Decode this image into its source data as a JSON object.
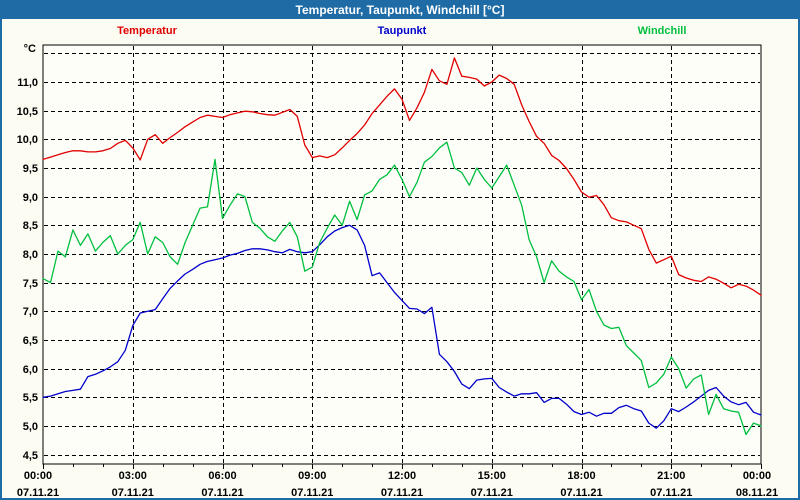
{
  "window": {
    "title": "Temperatur, Taupunkt, Windchill [°C]"
  },
  "colors": {
    "titlebar_bg": "#1e6ba6",
    "titlebar_text": "#ffffff",
    "frame_border": "#1e6ba6",
    "page_background": "#fcfcf3",
    "plot_background": "#fefef9",
    "grid": "#000000",
    "temperatur": "#e00000",
    "taupunkt": "#0000cc",
    "windchill": "#00bf3f"
  },
  "chart_data": {
    "type": "line",
    "title": "Temperatur, Taupunkt, Windchill [°C]",
    "grid": true,
    "legend_position": "top",
    "y_axis": {
      "unit_label": "°C",
      "min": 4.34,
      "max": 11.64,
      "gridline_values": [
        4.5,
        5.0,
        5.5,
        6.0,
        6.5,
        7.0,
        7.5,
        8.0,
        8.5,
        9.0,
        9.5,
        10.0,
        10.5,
        11.0,
        11.5
      ],
      "labels": [
        "4,5",
        "5,0",
        "5,5",
        "6,0",
        "6,5",
        "7,0",
        "7,5",
        "8,0",
        "8,5",
        "9,0",
        "9,5",
        "10,0",
        "10,5",
        "11,0"
      ],
      "decimal_separator": ","
    },
    "x_axis": {
      "hours_total": 24,
      "major_tick_hours": 3,
      "minor_tick_hours": 1,
      "ticks": [
        {
          "time": "00:00",
          "date": "07.11.21"
        },
        {
          "time": "03:00",
          "date": "07.11.21"
        },
        {
          "time": "06:00",
          "date": "07.11.21"
        },
        {
          "time": "09:00",
          "date": "07.11.21"
        },
        {
          "time": "12:00",
          "date": "07.11.21"
        },
        {
          "time": "15:00",
          "date": "07.11.21"
        },
        {
          "time": "18:00",
          "date": "07.11.21"
        },
        {
          "time": "21:00",
          "date": "07.11.21"
        },
        {
          "time": "00:00",
          "date": "08.11.21"
        }
      ]
    },
    "x_start_hour": 0,
    "x_step_hours": 0.25,
    "series": [
      {
        "name": "Temperatur",
        "color": "#e00000",
        "values": [
          9.65,
          9.69,
          9.73,
          9.77,
          9.8,
          9.8,
          9.78,
          9.78,
          9.8,
          9.84,
          9.93,
          9.98,
          9.85,
          9.64,
          10.0,
          10.08,
          9.93,
          10.03,
          10.12,
          10.22,
          10.3,
          10.38,
          10.42,
          10.4,
          10.38,
          10.43,
          10.46,
          10.49,
          10.48,
          10.45,
          10.43,
          10.42,
          10.47,
          10.52,
          10.4,
          9.9,
          9.68,
          9.71,
          9.68,
          9.73,
          9.85,
          9.98,
          10.1,
          10.25,
          10.45,
          10.6,
          10.75,
          10.88,
          10.7,
          10.33,
          10.55,
          10.82,
          11.22,
          11.02,
          10.96,
          11.42,
          11.1,
          11.08,
          11.05,
          10.93,
          11.0,
          11.12,
          11.06,
          10.96,
          10.6,
          10.31,
          10.05,
          9.93,
          9.72,
          9.63,
          9.49,
          9.3,
          9.08,
          8.99,
          9.02,
          8.86,
          8.63,
          8.58,
          8.56,
          8.5,
          8.44,
          8.08,
          7.84,
          7.9,
          7.96,
          7.64,
          7.58,
          7.54,
          7.52,
          7.6,
          7.56,
          7.49,
          7.41,
          7.47,
          7.44,
          7.37,
          7.28
        ]
      },
      {
        "name": "Taupunkt",
        "color": "#0000cc",
        "values": [
          5.5,
          5.52,
          5.56,
          5.6,
          5.62,
          5.64,
          5.86,
          5.9,
          5.96,
          6.03,
          6.12,
          6.32,
          6.75,
          6.97,
          7.0,
          7.03,
          7.22,
          7.4,
          7.53,
          7.65,
          7.73,
          7.82,
          7.87,
          7.9,
          7.93,
          7.98,
          8.01,
          8.06,
          8.09,
          8.09,
          8.07,
          8.04,
          8.02,
          8.08,
          8.04,
          8.02,
          8.04,
          8.16,
          8.3,
          8.4,
          8.46,
          8.5,
          8.42,
          8.15,
          7.62,
          7.67,
          7.5,
          7.33,
          7.19,
          7.05,
          7.04,
          6.96,
          7.07,
          6.25,
          6.12,
          5.95,
          5.73,
          5.65,
          5.8,
          5.82,
          5.83,
          5.67,
          5.59,
          5.52,
          5.56,
          5.56,
          5.58,
          5.41,
          5.48,
          5.48,
          5.38,
          5.25,
          5.2,
          5.24,
          5.17,
          5.22,
          5.22,
          5.32,
          5.36,
          5.3,
          5.26,
          5.05,
          4.96,
          5.09,
          5.3,
          5.25,
          5.33,
          5.42,
          5.52,
          5.62,
          5.67,
          5.52,
          5.42,
          5.37,
          5.41,
          5.24,
          5.19
        ]
      },
      {
        "name": "Windchill",
        "color": "#00bf3f",
        "values": [
          7.57,
          7.5,
          8.05,
          7.95,
          8.42,
          8.15,
          8.35,
          8.05,
          8.2,
          8.32,
          8.0,
          8.15,
          8.25,
          8.55,
          8.0,
          8.3,
          8.2,
          7.95,
          7.82,
          8.2,
          8.5,
          8.8,
          8.82,
          9.65,
          8.62,
          8.85,
          9.05,
          9.0,
          8.55,
          8.45,
          8.3,
          8.22,
          8.4,
          8.55,
          8.3,
          7.7,
          7.77,
          8.2,
          8.45,
          8.68,
          8.5,
          8.92,
          8.6,
          9.03,
          9.1,
          9.3,
          9.38,
          9.55,
          9.3,
          9.0,
          9.25,
          9.6,
          9.7,
          9.85,
          9.95,
          9.5,
          9.42,
          9.2,
          9.5,
          9.3,
          9.15,
          9.35,
          9.55,
          9.2,
          8.85,
          8.25,
          7.95,
          7.5,
          7.88,
          7.7,
          7.6,
          7.52,
          7.2,
          7.38,
          7.0,
          6.76,
          6.7,
          6.72,
          6.4,
          6.27,
          6.14,
          5.67,
          5.75,
          5.9,
          6.2,
          6.0,
          5.66,
          5.82,
          5.89,
          5.2,
          5.55,
          5.3,
          5.26,
          5.24,
          4.85,
          5.05,
          5.0
        ]
      }
    ]
  }
}
